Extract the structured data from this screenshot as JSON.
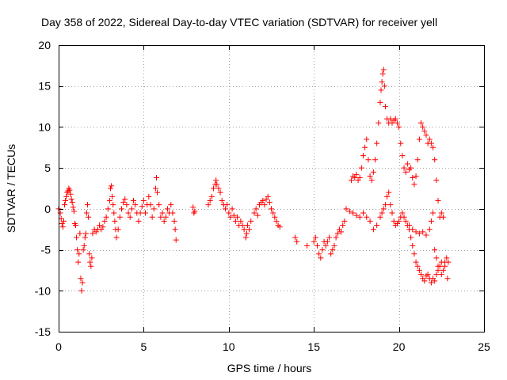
{
  "chart_data": {
    "type": "scatter",
    "title": "Day 358 of 2022, Sidereal Day-to-day VTEC variation (SDTVAR) for receiver yell",
    "xlabel": "GPS time / hours",
    "ylabel": "SDTVAR / TECUs",
    "xlim": [
      0,
      25
    ],
    "ylim": [
      -15,
      20
    ],
    "xticks": [
      0,
      5,
      10,
      15,
      20,
      25
    ],
    "yticks": [
      -15,
      -10,
      -5,
      0,
      5,
      10,
      15,
      20
    ],
    "grid": true,
    "marker": "+",
    "color": "#ff0000",
    "series": [
      {
        "name": "SDTVAR",
        "points": [
          [
            0.0,
            0.0
          ],
          [
            0.1,
            -0.5
          ],
          [
            0.15,
            -1.2
          ],
          [
            0.2,
            -1.8
          ],
          [
            0.25,
            -2.2
          ],
          [
            0.3,
            -1.5
          ],
          [
            0.35,
            0.5
          ],
          [
            0.4,
            1.0
          ],
          [
            0.45,
            1.5
          ],
          [
            0.5,
            2.0
          ],
          [
            0.55,
            2.2
          ],
          [
            0.6,
            2.5
          ],
          [
            0.65,
            2.3
          ],
          [
            0.7,
            1.8
          ],
          [
            0.75,
            1.2
          ],
          [
            0.8,
            0.8
          ],
          [
            0.85,
            0.2
          ],
          [
            0.9,
            -0.3
          ],
          [
            0.95,
            -1.8
          ],
          [
            1.0,
            -2.0
          ],
          [
            1.05,
            -3.5
          ],
          [
            1.1,
            -5.0
          ],
          [
            1.15,
            -6.5
          ],
          [
            1.2,
            -5.5
          ],
          [
            1.25,
            -3.0
          ],
          [
            1.3,
            -8.5
          ],
          [
            1.35,
            -10.0
          ],
          [
            1.4,
            -9.0
          ],
          [
            1.45,
            -5.0
          ],
          [
            1.5,
            -4.5
          ],
          [
            1.55,
            -3.5
          ],
          [
            1.6,
            -3.0
          ],
          [
            1.65,
            -0.5
          ],
          [
            1.7,
            0.5
          ],
          [
            1.75,
            -1.0
          ],
          [
            1.8,
            -5.5
          ],
          [
            1.85,
            -6.5
          ],
          [
            1.9,
            -7.0
          ],
          [
            1.95,
            -6.0
          ],
          [
            2.0,
            -3.0
          ],
          [
            2.1,
            -2.5
          ],
          [
            2.2,
            -2.8
          ],
          [
            2.3,
            -2.5
          ],
          [
            2.4,
            -2.0
          ],
          [
            2.5,
            -2.5
          ],
          [
            2.6,
            -2.2
          ],
          [
            2.7,
            -1.5
          ],
          [
            2.8,
            -1.0
          ],
          [
            2.9,
            0.0
          ],
          [
            3.0,
            1.0
          ],
          [
            3.05,
            2.5
          ],
          [
            3.1,
            2.8
          ],
          [
            3.15,
            1.5
          ],
          [
            3.2,
            0.5
          ],
          [
            3.25,
            -0.5
          ],
          [
            3.3,
            -1.5
          ],
          [
            3.35,
            -2.5
          ],
          [
            3.4,
            -3.5
          ],
          [
            3.5,
            -2.5
          ],
          [
            3.6,
            -1.0
          ],
          [
            3.7,
            0.0
          ],
          [
            3.8,
            0.8
          ],
          [
            3.9,
            1.2
          ],
          [
            4.0,
            0.5
          ],
          [
            4.1,
            -0.5
          ],
          [
            4.2,
            -1.0
          ],
          [
            4.3,
            0.0
          ],
          [
            4.4,
            1.0
          ],
          [
            4.5,
            0.5
          ],
          [
            4.6,
            -0.5
          ],
          [
            4.7,
            -1.5
          ],
          [
            4.8,
            -0.5
          ],
          [
            4.9,
            0.3
          ],
          [
            5.0,
            1.0
          ],
          [
            5.1,
            -0.5
          ],
          [
            5.2,
            0.5
          ],
          [
            5.3,
            1.5
          ],
          [
            5.4,
            0.5
          ],
          [
            5.5,
            -1.0
          ],
          [
            5.6,
            0.0
          ],
          [
            5.7,
            2.5
          ],
          [
            5.75,
            3.8
          ],
          [
            5.8,
            2.0
          ],
          [
            5.9,
            0.5
          ],
          [
            6.0,
            -1.0
          ],
          [
            6.1,
            -0.5
          ],
          [
            6.2,
            -1.5
          ],
          [
            6.3,
            -1.0
          ],
          [
            6.4,
            0.0
          ],
          [
            6.5,
            -0.5
          ],
          [
            6.6,
            0.5
          ],
          [
            6.7,
            -0.5
          ],
          [
            6.8,
            -1.5
          ],
          [
            6.85,
            -2.5
          ],
          [
            6.9,
            -3.8
          ],
          [
            7.9,
            0.2
          ],
          [
            7.95,
            -0.5
          ],
          [
            8.0,
            -0.3
          ],
          [
            8.8,
            0.5
          ],
          [
            8.9,
            1.0
          ],
          [
            9.0,
            1.5
          ],
          [
            9.1,
            2.5
          ],
          [
            9.2,
            3.0
          ],
          [
            9.25,
            3.5
          ],
          [
            9.3,
            3.0
          ],
          [
            9.4,
            2.5
          ],
          [
            9.5,
            2.0
          ],
          [
            9.6,
            1.0
          ],
          [
            9.7,
            0.5
          ],
          [
            9.8,
            0.0
          ],
          [
            9.9,
            0.5
          ],
          [
            10.0,
            -0.5
          ],
          [
            10.1,
            -1.0
          ],
          [
            10.2,
            0.0
          ],
          [
            10.3,
            -0.8
          ],
          [
            10.4,
            -1.5
          ],
          [
            10.5,
            -1.0
          ],
          [
            10.6,
            -2.0
          ],
          [
            10.7,
            -1.5
          ],
          [
            10.8,
            -2.0
          ],
          [
            10.9,
            -2.5
          ],
          [
            11.0,
            -3.5
          ],
          [
            11.05,
            -3.0
          ],
          [
            11.1,
            -2.0
          ],
          [
            11.2,
            -2.5
          ],
          [
            11.3,
            -1.5
          ],
          [
            11.5,
            -0.5
          ],
          [
            11.6,
            0.0
          ],
          [
            11.7,
            -0.8
          ],
          [
            11.8,
            0.5
          ],
          [
            11.9,
            0.8
          ],
          [
            12.0,
            1.0
          ],
          [
            12.1,
            0.5
          ],
          [
            12.2,
            1.2
          ],
          [
            12.3,
            1.5
          ],
          [
            12.4,
            0.8
          ],
          [
            12.5,
            0.0
          ],
          [
            12.6,
            -0.5
          ],
          [
            12.7,
            -1.0
          ],
          [
            12.8,
            -1.5
          ],
          [
            12.9,
            -2.0
          ],
          [
            13.0,
            -2.2
          ],
          [
            13.9,
            -3.5
          ],
          [
            14.0,
            -4.0
          ],
          [
            14.6,
            -4.5
          ],
          [
            15.0,
            -4.0
          ],
          [
            15.1,
            -3.5
          ],
          [
            15.2,
            -4.5
          ],
          [
            15.3,
            -5.5
          ],
          [
            15.4,
            -6.0
          ],
          [
            15.5,
            -5.0
          ],
          [
            15.6,
            -4.0
          ],
          [
            15.7,
            -4.5
          ],
          [
            15.8,
            -4.0
          ],
          [
            15.9,
            -3.5
          ],
          [
            16.0,
            -5.5
          ],
          [
            16.1,
            -5.0
          ],
          [
            16.2,
            -4.5
          ],
          [
            16.3,
            -3.5
          ],
          [
            16.4,
            -3.0
          ],
          [
            16.5,
            -2.5
          ],
          [
            16.6,
            -2.8
          ],
          [
            16.7,
            -2.0
          ],
          [
            16.8,
            -1.5
          ],
          [
            16.9,
            0.0
          ],
          [
            17.2,
            3.5
          ],
          [
            17.3,
            4.0
          ],
          [
            17.4,
            3.8
          ],
          [
            17.5,
            4.2
          ],
          [
            17.6,
            3.5
          ],
          [
            17.7,
            3.8
          ],
          [
            17.8,
            5.0
          ],
          [
            17.9,
            6.5
          ],
          [
            18.0,
            7.5
          ],
          [
            18.1,
            8.5
          ],
          [
            18.2,
            6.0
          ],
          [
            18.3,
            4.0
          ],
          [
            18.4,
            3.5
          ],
          [
            18.5,
            4.5
          ],
          [
            18.6,
            6.0
          ],
          [
            18.7,
            8.0
          ],
          [
            18.8,
            10.5
          ],
          [
            18.9,
            13.0
          ],
          [
            18.95,
            14.5
          ],
          [
            19.0,
            15.5
          ],
          [
            19.05,
            16.5
          ],
          [
            19.1,
            17.0
          ],
          [
            19.15,
            15.0
          ],
          [
            19.2,
            12.5
          ],
          [
            19.3,
            11.0
          ],
          [
            19.4,
            10.5
          ],
          [
            19.5,
            11.0
          ],
          [
            19.6,
            10.5
          ],
          [
            19.7,
            10.8
          ],
          [
            19.8,
            11.0
          ],
          [
            19.9,
            10.5
          ],
          [
            20.0,
            10.0
          ],
          [
            20.1,
            8.0
          ],
          [
            20.2,
            6.5
          ],
          [
            20.3,
            5.0
          ],
          [
            20.4,
            4.5
          ],
          [
            20.5,
            5.5
          ],
          [
            20.6,
            4.8
          ],
          [
            20.7,
            5.0
          ],
          [
            20.8,
            3.8
          ],
          [
            20.9,
            3.0
          ],
          [
            21.0,
            4.0
          ],
          [
            21.1,
            6.0
          ],
          [
            21.2,
            8.5
          ],
          [
            21.3,
            10.5
          ],
          [
            21.4,
            10.0
          ],
          [
            21.5,
            9.5
          ],
          [
            21.6,
            9.0
          ],
          [
            21.7,
            8.0
          ],
          [
            21.8,
            8.5
          ],
          [
            21.9,
            8.0
          ],
          [
            22.0,
            7.5
          ],
          [
            22.1,
            6.0
          ],
          [
            22.2,
            3.5
          ],
          [
            22.3,
            1.0
          ],
          [
            22.4,
            -1.0
          ],
          [
            22.5,
            -0.5
          ],
          [
            22.6,
            -1.0
          ],
          [
            17.1,
            -0.3
          ],
          [
            17.3,
            -0.5
          ],
          [
            17.5,
            -0.8
          ],
          [
            17.7,
            -1.0
          ],
          [
            17.9,
            -0.5
          ],
          [
            18.1,
            -1.0
          ],
          [
            18.3,
            -1.5
          ],
          [
            18.5,
            -2.5
          ],
          [
            18.7,
            -2.0
          ],
          [
            18.9,
            -1.0
          ],
          [
            19.0,
            -0.5
          ],
          [
            19.1,
            0.0
          ],
          [
            19.2,
            0.5
          ],
          [
            19.3,
            1.5
          ],
          [
            19.4,
            2.0
          ],
          [
            19.5,
            0.5
          ],
          [
            19.6,
            -0.5
          ],
          [
            19.7,
            -1.5
          ],
          [
            19.8,
            -2.0
          ],
          [
            19.9,
            -1.8
          ],
          [
            20.0,
            -1.5
          ],
          [
            20.1,
            -1.0
          ],
          [
            20.2,
            -0.5
          ],
          [
            20.3,
            -1.0
          ],
          [
            20.4,
            -1.5
          ],
          [
            20.5,
            -2.0
          ],
          [
            20.6,
            -2.5
          ],
          [
            20.7,
            -3.5
          ],
          [
            20.8,
            -4.5
          ],
          [
            20.9,
            -5.5
          ],
          [
            21.0,
            -6.5
          ],
          [
            21.1,
            -7.0
          ],
          [
            21.2,
            -7.5
          ],
          [
            21.3,
            -8.0
          ],
          [
            21.4,
            -8.5
          ],
          [
            21.5,
            -8.8
          ],
          [
            21.6,
            -8.2
          ],
          [
            21.7,
            -8.0
          ],
          [
            21.8,
            -8.5
          ],
          [
            21.9,
            -9.0
          ],
          [
            22.0,
            -8.5
          ],
          [
            22.1,
            -8.8
          ],
          [
            22.2,
            -8.0
          ],
          [
            22.3,
            -7.5
          ],
          [
            22.4,
            -7.0
          ],
          [
            22.5,
            -6.5
          ],
          [
            22.6,
            -7.5
          ],
          [
            22.7,
            -6.5
          ],
          [
            20.6,
            -2.0
          ],
          [
            20.8,
            -2.5
          ],
          [
            21.0,
            -2.8
          ],
          [
            21.2,
            -3.0
          ],
          [
            21.4,
            -2.8
          ],
          [
            21.6,
            -3.2
          ],
          [
            21.8,
            -2.5
          ],
          [
            21.9,
            -1.5
          ],
          [
            22.0,
            -0.5
          ],
          [
            22.1,
            -5.0
          ],
          [
            22.2,
            -6.0
          ],
          [
            22.3,
            -7.0
          ],
          [
            22.5,
            -8.0
          ],
          [
            22.7,
            -7.0
          ],
          [
            22.8,
            -6.0
          ],
          [
            22.85,
            -8.5
          ],
          [
            22.9,
            -6.5
          ]
        ]
      }
    ]
  }
}
